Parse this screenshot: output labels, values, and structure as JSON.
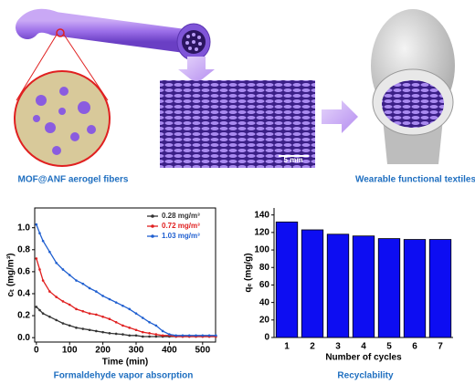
{
  "figure": {
    "captions": {
      "fibers": "MOF@ANF aerogel fibers",
      "textiles": "Wearable functional textiles",
      "absorption": "Formaldehyde vapor absorption",
      "recyclability": "Recyclability"
    },
    "scale_bar": "5 mm"
  },
  "chart_data": [
    {
      "type": "line",
      "x_label": "Time (min)",
      "y_label": "cₜ (mg/m³)",
      "x": [
        0,
        10,
        20,
        40,
        60,
        80,
        100,
        120,
        140,
        160,
        180,
        200,
        220,
        240,
        260,
        280,
        300,
        320,
        340,
        360,
        380,
        400,
        420,
        440,
        460,
        480,
        500,
        520,
        540
      ],
      "xlim": [
        -5,
        539
      ],
      "xticks": [
        0,
        100,
        200,
        300,
        400,
        500
      ],
      "ylim": [
        -0.04,
        1.18
      ],
      "yticks": [
        {
          "value": 0,
          "label": "0.0"
        },
        {
          "value": 0.2,
          "label": "0.2"
        },
        {
          "value": 0.4,
          "label": "0.4"
        },
        {
          "value": 0.6,
          "label": "0.6"
        },
        {
          "value": 0.8,
          "label": "0.8"
        },
        {
          "value": 1,
          "label": "1.0"
        }
      ],
      "series": [
        {
          "name": "0.28 mg/m³",
          "color": "#333333",
          "values": [
            0.28,
            0.25,
            0.22,
            0.19,
            0.16,
            0.13,
            0.11,
            0.09,
            0.08,
            0.07,
            0.06,
            0.05,
            0.04,
            0.035,
            0.03,
            0.02,
            0.02,
            0.01,
            0.01,
            0.01,
            0.01,
            0.01,
            0.01,
            0.01,
            0.01,
            0.01,
            0.01,
            0.01,
            0.01
          ]
        },
        {
          "name": "0.72 mg/m³",
          "color": "#e02020",
          "values": [
            0.72,
            0.62,
            0.52,
            0.42,
            0.37,
            0.33,
            0.3,
            0.26,
            0.24,
            0.22,
            0.21,
            0.19,
            0.17,
            0.14,
            0.11,
            0.09,
            0.07,
            0.05,
            0.04,
            0.03,
            0.02,
            0.02,
            0.01,
            0.01,
            0.01,
            0.01,
            0.01,
            0.01,
            0.01
          ]
        },
        {
          "name": "1.03 mg/m³",
          "color": "#1f5fd0",
          "values": [
            1.03,
            0.95,
            0.88,
            0.78,
            0.68,
            0.62,
            0.57,
            0.52,
            0.49,
            0.45,
            0.42,
            0.38,
            0.35,
            0.32,
            0.29,
            0.26,
            0.22,
            0.18,
            0.14,
            0.11,
            0.06,
            0.03,
            0.02,
            0.02,
            0.02,
            0.02,
            0.02,
            0.02,
            0.02
          ]
        }
      ]
    },
    {
      "type": "bar",
      "x_label": "Number of cycles",
      "y_label": "qₑ (mg/g)",
      "categories": [
        "1",
        "2",
        "3",
        "4",
        "5",
        "6",
        "7"
      ],
      "values": [
        132,
        123,
        118,
        116,
        113,
        112,
        112
      ],
      "color": "#0d0df2",
      "ylim": [
        0,
        148
      ],
      "yticks": [
        0,
        20,
        40,
        60,
        80,
        100,
        120,
        140
      ]
    }
  ]
}
